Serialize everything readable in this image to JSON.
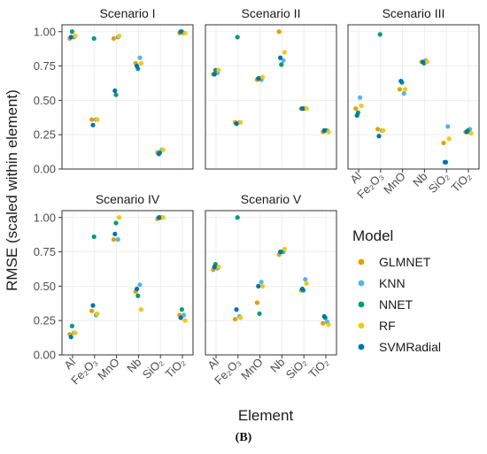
{
  "figure": {
    "caption": "(B)"
  },
  "chart_data": {
    "type": "scatter",
    "xlabel": "Element",
    "ylabel": "RMSE (scaled within element)",
    "ylim": [
      0,
      1.05
    ],
    "yticks": [
      "0.00",
      "0.25",
      "0.50",
      "0.75",
      "1.00"
    ],
    "ytick_values": [
      0,
      0.25,
      0.5,
      0.75,
      1.0
    ],
    "categories": [
      "Al",
      "Fe₂O₃",
      "MnO",
      "Nb",
      "SiO₂",
      "TiO₂"
    ],
    "grid": true,
    "legend": {
      "title": "Model",
      "position": "right",
      "items": [
        {
          "name": "GLMNET",
          "color": "#E69F00"
        },
        {
          "name": "KNN",
          "color": "#56B4E9"
        },
        {
          "name": "NNET",
          "color": "#009E73"
        },
        {
          "name": "RF",
          "color": "#F5C710"
        },
        {
          "name": "SVMRadial",
          "color": "#0072B2"
        }
      ]
    },
    "facets": [
      {
        "title": "Scenario I",
        "series": [
          {
            "name": "GLMNET",
            "values": [
              0.95,
              0.36,
              0.95,
              0.77,
              0.12,
              0.99
            ]
          },
          {
            "name": "KNN",
            "values": [
              0.96,
              0.36,
              0.96,
              0.81,
              0.14,
              0.99
            ]
          },
          {
            "name": "NNET",
            "values": [
              1.0,
              0.95,
              0.54,
              0.73,
              0.12,
              1.0
            ]
          },
          {
            "name": "RF",
            "values": [
              0.97,
              0.36,
              0.97,
              0.77,
              0.14,
              0.99
            ]
          },
          {
            "name": "SVMRadial",
            "values": [
              0.96,
              0.32,
              0.57,
              0.75,
              0.11,
              1.0
            ]
          }
        ]
      },
      {
        "title": "Scenario II",
        "series": [
          {
            "name": "GLMNET",
            "values": [
              0.69,
              0.34,
              0.65,
              1.0,
              0.44,
              0.27
            ]
          },
          {
            "name": "KNN",
            "values": [
              0.7,
              0.34,
              0.65,
              0.79,
              0.44,
              0.28
            ]
          },
          {
            "name": "NNET",
            "values": [
              0.72,
              0.96,
              0.66,
              0.76,
              0.44,
              0.28
            ]
          },
          {
            "name": "RF",
            "values": [
              0.72,
              0.34,
              0.67,
              0.85,
              0.44,
              0.27
            ]
          },
          {
            "name": "SVMRadial",
            "values": [
              0.69,
              0.33,
              0.66,
              0.81,
              0.44,
              0.28
            ]
          }
        ]
      },
      {
        "title": "Scenario III",
        "series": [
          {
            "name": "GLMNET",
            "values": [
              0.44,
              0.29,
              0.58,
              0.78,
              0.19,
              0.27
            ]
          },
          {
            "name": "KNN",
            "values": [
              0.52,
              0.28,
              0.55,
              0.79,
              0.31,
              0.29
            ]
          },
          {
            "name": "NNET",
            "values": [
              0.41,
              0.98,
              0.63,
              0.77,
              0.05,
              0.28
            ]
          },
          {
            "name": "RF",
            "values": [
              0.46,
              0.28,
              0.58,
              0.78,
              0.22,
              0.26
            ]
          },
          {
            "name": "SVMRadial",
            "values": [
              0.39,
              0.24,
              0.64,
              0.78,
              0.05,
              0.27
            ]
          }
        ]
      },
      {
        "title": "Scenario IV",
        "series": [
          {
            "name": "GLMNET",
            "values": [
              0.15,
              0.32,
              0.84,
              0.46,
              0.99,
              0.29
            ]
          },
          {
            "name": "KNN",
            "values": [
              0.16,
              0.29,
              0.84,
              0.51,
              1.0,
              0.29
            ]
          },
          {
            "name": "NNET",
            "values": [
              0.21,
              0.86,
              0.96,
              0.43,
              1.0,
              0.33
            ]
          },
          {
            "name": "RF",
            "values": [
              0.16,
              0.3,
              1.0,
              0.33,
              1.0,
              0.25
            ]
          },
          {
            "name": "SVMRadial",
            "values": [
              0.13,
              0.36,
              0.88,
              0.48,
              1.0,
              0.27
            ]
          }
        ]
      },
      {
        "title": "Scenario V",
        "series": [
          {
            "name": "GLMNET",
            "values": [
              0.62,
              0.26,
              0.38,
              0.73,
              0.47,
              0.23
            ]
          },
          {
            "name": "KNN",
            "values": [
              0.63,
              0.28,
              0.53,
              0.75,
              0.55,
              0.24
            ]
          },
          {
            "name": "NNET",
            "values": [
              0.66,
              1.0,
              0.3,
              0.75,
              0.47,
              0.27
            ]
          },
          {
            "name": "RF",
            "values": [
              0.64,
              0.27,
              0.5,
              0.77,
              0.52,
              0.22
            ]
          },
          {
            "name": "SVMRadial",
            "values": [
              0.64,
              0.33,
              0.5,
              0.75,
              0.48,
              0.28
            ]
          }
        ]
      }
    ]
  }
}
